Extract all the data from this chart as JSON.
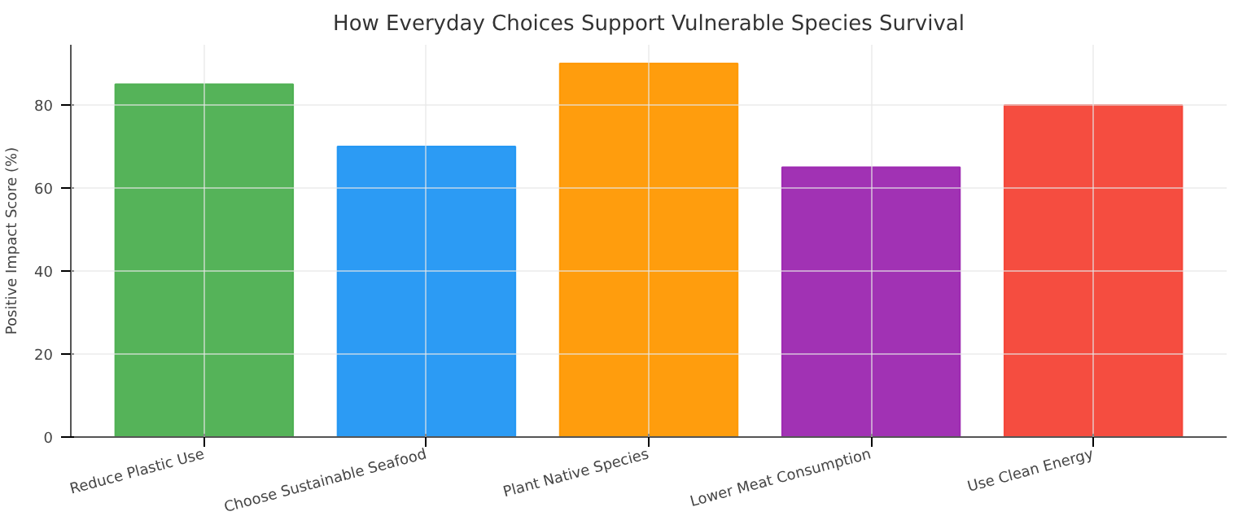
{
  "chart_data": {
    "type": "bar",
    "title": "How Everyday Choices Support Vulnerable Species Survival",
    "ylabel": "Positive Impact Score (%)",
    "categories": [
      "Reduce Plastic Use",
      "Choose Sustainable Seafood",
      "Plant Native Species",
      "Lower Meat Consumption",
      "Use Clean Energy"
    ],
    "values": [
      85,
      70,
      90,
      65,
      80
    ],
    "colors": [
      "#4caf50",
      "#2196f3",
      "#ff9800",
      "#9c27b0",
      "#f44336"
    ],
    "ylim": [
      0,
      94.5
    ],
    "yticks": [
      0,
      20,
      40,
      60,
      80
    ],
    "grid": true
  }
}
